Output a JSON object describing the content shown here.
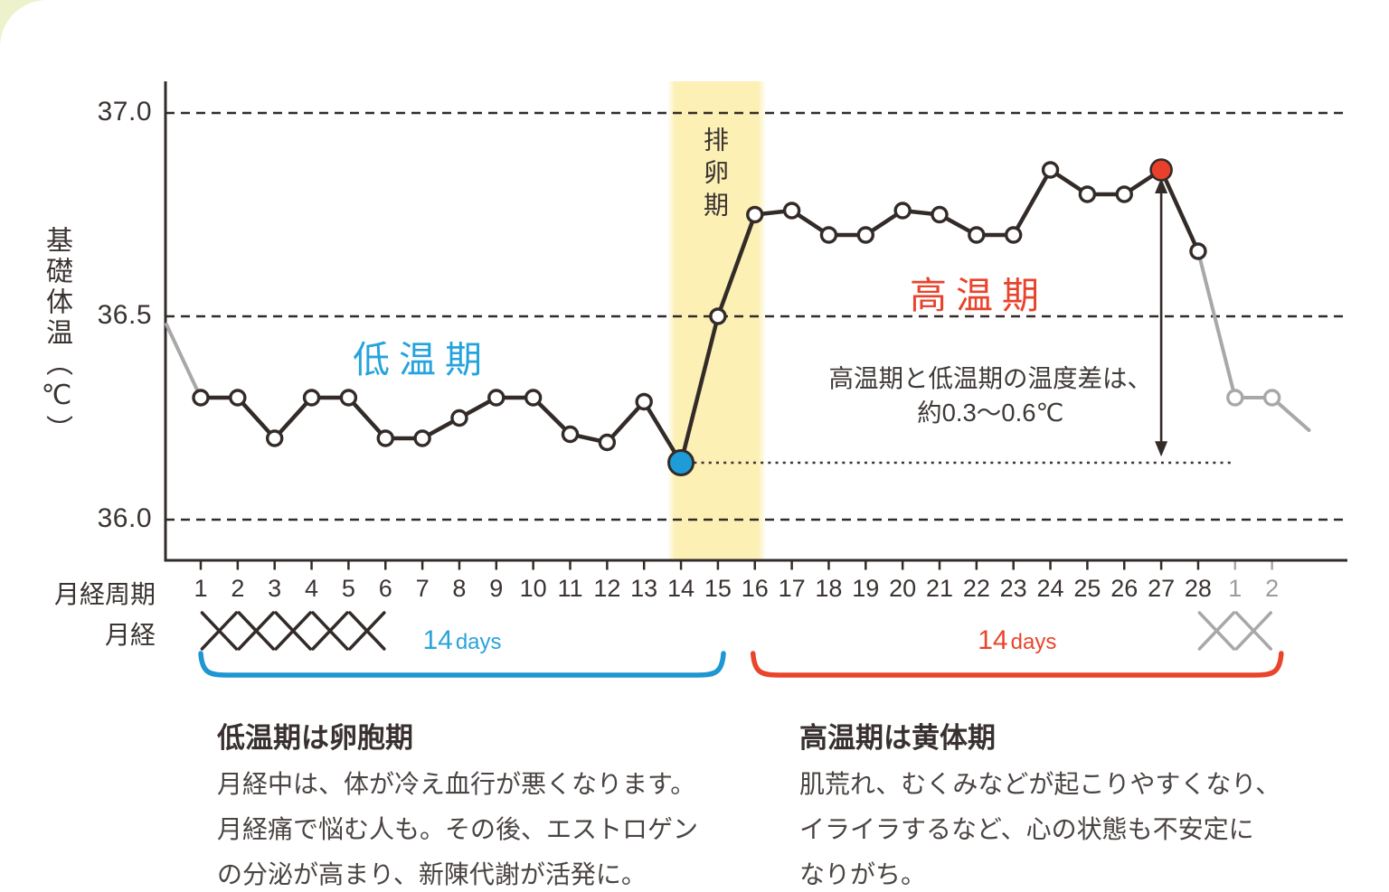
{
  "colors": {
    "line_dark": "#332b28",
    "line_gray": "#a8a8a8",
    "blue": "#1e9cd7",
    "red": "#e8402b",
    "band": "#fcf0b5",
    "text_gray": "#9c9c9c",
    "corner_decoration": "#edf2cd"
  },
  "chart_data": {
    "type": "line",
    "ylabel": "基礎体温（℃）",
    "yticks": [
      {
        "value": 37.0,
        "label": "37.0"
      },
      {
        "value": 36.5,
        "label": "36.5"
      },
      {
        "value": 36.0,
        "label": "36.0"
      }
    ],
    "ylim": [
      35.9,
      37.08
    ],
    "x_axis_row_label": "月経周期",
    "menses_row_label": "月経",
    "days": [
      "1",
      "2",
      "3",
      "4",
      "5",
      "6",
      "7",
      "8",
      "9",
      "10",
      "11",
      "12",
      "13",
      "14",
      "15",
      "16",
      "17",
      "18",
      "19",
      "20",
      "21",
      "22",
      "23",
      "24",
      "25",
      "26",
      "27",
      "28",
      "1",
      "2"
    ],
    "next_cycle_from_index": 28,
    "temps": [
      36.3,
      36.3,
      36.2,
      36.3,
      36.3,
      36.2,
      36.2,
      36.25,
      36.3,
      36.3,
      36.21,
      36.19,
      36.29,
      36.14,
      36.5,
      36.75,
      36.76,
      36.7,
      36.7,
      36.76,
      36.75,
      36.7,
      36.7,
      36.86,
      36.8,
      36.8,
      36.86,
      36.66,
      36.3,
      36.3
    ],
    "markers": [
      "open",
      "open",
      "open",
      "open",
      "open",
      "open",
      "open",
      "open",
      "open",
      "open",
      "open",
      "open",
      "open",
      "blue-dot",
      "open",
      "open",
      "open",
      "open",
      "open",
      "open",
      "open",
      "open",
      "open",
      "open",
      "open",
      "open",
      "red-dot",
      "open",
      "gray-open",
      "gray-open"
    ],
    "lead_in": {
      "temp_at_axis": 36.48
    },
    "tail_out": {
      "temp": 36.22,
      "at_index": 30
    },
    "gray_segments_from_index": 27,
    "ovulation_band": {
      "label": "排卵期",
      "from_index": 12.63,
      "to_index": 15.3
    },
    "phase_labels": [
      {
        "text": "低温期",
        "color": "#25a3dc"
      },
      {
        "text": "高温期",
        "color": "#e8432c"
      }
    ],
    "annotation": {
      "line1": "高温期と低温期の温度差は、",
      "line2": "約0.3〜0.6℃"
    },
    "dotted_baseline": {
      "temp": 36.14,
      "from_index": 13.35,
      "to_index": 27.9
    },
    "diff_arrow": {
      "at_index": 26,
      "top_temp": 36.84,
      "bottom_temp": 36.155
    },
    "menstruation_marks": {
      "black_midpoints": [
        0.5,
        1.5,
        2.5,
        3.5,
        4.5
      ],
      "gray_midpoints": [
        27.5,
        28.5
      ]
    },
    "braces": [
      {
        "number": "14",
        "unit": "days",
        "from_index": 0,
        "to_index": 14.15,
        "color": "#1d96d2"
      },
      {
        "number": "14",
        "unit": "days",
        "from_index": 14.95,
        "to_index": 29.25,
        "color": "#e8452c"
      }
    ]
  },
  "footnotes": {
    "left": {
      "heading": "低温期は卵胞期",
      "body": "月経中は、体が冷え血行が悪くなります。\n月経痛で悩む人も。その後、エストロゲン\nの分泌が高まり、新陳代謝が活発に。"
    },
    "right": {
      "heading": "高温期は黄体期",
      "body": "肌荒れ、むくみなどが起こりやすくなり、\nイライラするなど、心の状態も不安定に\nなりがち。"
    }
  }
}
